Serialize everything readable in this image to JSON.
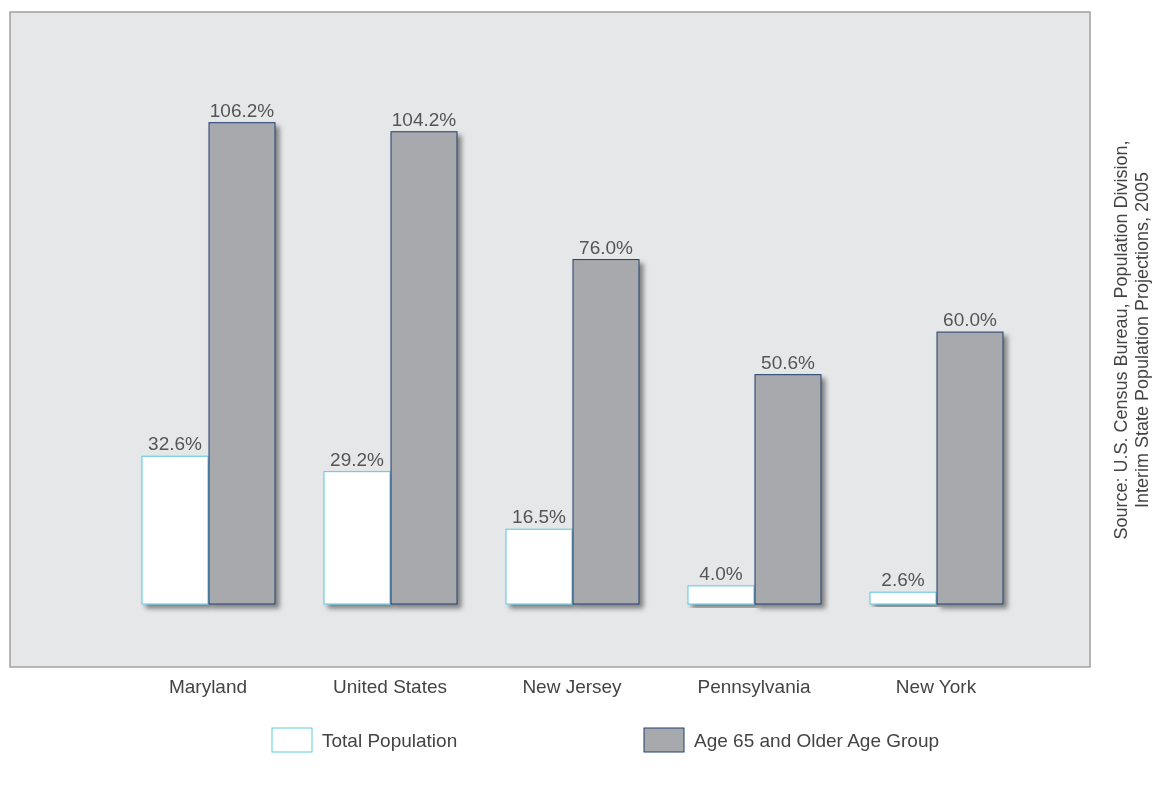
{
  "chart_data": {
    "type": "bar",
    "categories": [
      "Maryland",
      "United States",
      "New Jersey",
      "Pennsylvania",
      "New York"
    ],
    "series": [
      {
        "name": "Total Population",
        "color": "#ffffff",
        "values": [
          32.6,
          29.2,
          16.5,
          4.0,
          2.6
        ],
        "value_labels": [
          "32.6%",
          "29.2%",
          "16.5%",
          "4.0%",
          "2.6%"
        ]
      },
      {
        "name": "Age 65 and Older Age Group",
        "color": "#a7a9ac",
        "values": [
          106.2,
          104.2,
          76.0,
          50.6,
          60.0
        ],
        "value_labels": [
          "106.2%",
          "104.2%",
          "76.0%",
          "50.6%",
          "60.0%"
        ]
      }
    ],
    "legend": "bottom",
    "annotations": [
      "Source: U.S. Census Bureau, Population Division,\nInterim State Population Projections, 2005"
    ]
  }
}
